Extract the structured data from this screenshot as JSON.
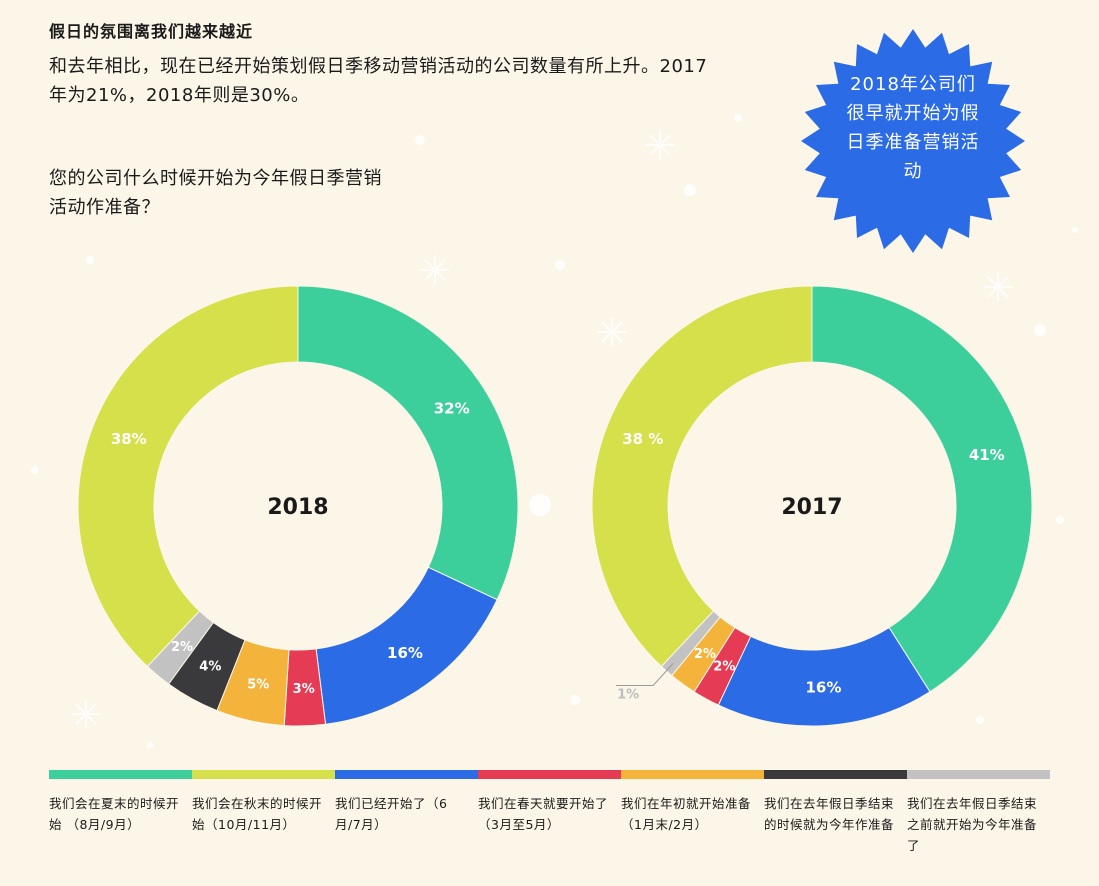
{
  "header": {
    "title": "假日的氛围离我们越来越近",
    "intro": "和去年相比，现在已经开始策划假日季移动营销活动的公司数量有所上升。2017年为21%，2018年则是30%。",
    "question": "您的公司什么时候开始为今年假日季营销活动作准备？"
  },
  "badge": {
    "text": "2018年公司们很早就开始为假日季准备营销活动",
    "color": "#2b6be6"
  },
  "colors": {
    "background": "#fcf6e8",
    "green": "#3ccf9c",
    "lime": "#d5e04a",
    "blue": "#2b6be6",
    "red": "#e63b55",
    "orange": "#f4b43c",
    "dark": "#3a3a3c",
    "gray": "#c2c2c2"
  },
  "chart_data": [
    {
      "type": "pie",
      "center_label": "2018",
      "categories": [
        "我们会在夏末的时候开始 （8月/9月）",
        "我们已经开始了（6月/7月）",
        "我们在春天就要开始了 （3月至5月）",
        "我们在年初就开始准备 （1月末/2月）",
        "我们在去年假日季结束的时候就为今年作准备",
        "我们在去年假日季结束之前就开始为今年准备了",
        "我们会在秋末的时候开始（10月/11月）"
      ],
      "values": [
        32,
        16,
        3,
        5,
        4,
        2,
        38
      ],
      "labels": [
        "32%",
        "16%",
        "3%",
        "5%",
        "4%",
        "2%",
        "38%"
      ]
    },
    {
      "type": "pie",
      "center_label": "2017",
      "categories": [
        "我们会在夏末的时候开始 （8月/9月）",
        "我们已经开始了（6月/7月）",
        "我们在春天就要开始了 （3月至5月）",
        "我们在年初就开始准备 （1月末/2月）",
        "我们在去年假日季结束之前就开始为今年准备了",
        "我们会在秋末的时候开始（10月/11月）"
      ],
      "values": [
        41,
        16,
        2,
        2,
        1,
        38
      ],
      "labels": [
        "41%",
        "16%",
        "2%",
        "2%",
        "1%",
        "38 %"
      ]
    }
  ],
  "legend": [
    {
      "label": "我们会在夏末的时候开始 （8月/9月）",
      "color": "#3ccf9c"
    },
    {
      "label": "我们会在秋末的时候开始（10月/11月）",
      "color": "#d5e04a"
    },
    {
      "label": "我们已经开始了（6月/7月）",
      "color": "#2b6be6"
    },
    {
      "label": "我们在春天就要开始了 （3月至5月）",
      "color": "#e63b55"
    },
    {
      "label": "我们在年初就开始准备 （1月末/2月）",
      "color": "#f4b43c"
    },
    {
      "label": "我们在去年假日季结束的时候就为今年作准备",
      "color": "#3a3a3c"
    },
    {
      "label": "我们在去年假日季结束之前就开始为今年准备了",
      "color": "#c2c2c2"
    }
  ]
}
